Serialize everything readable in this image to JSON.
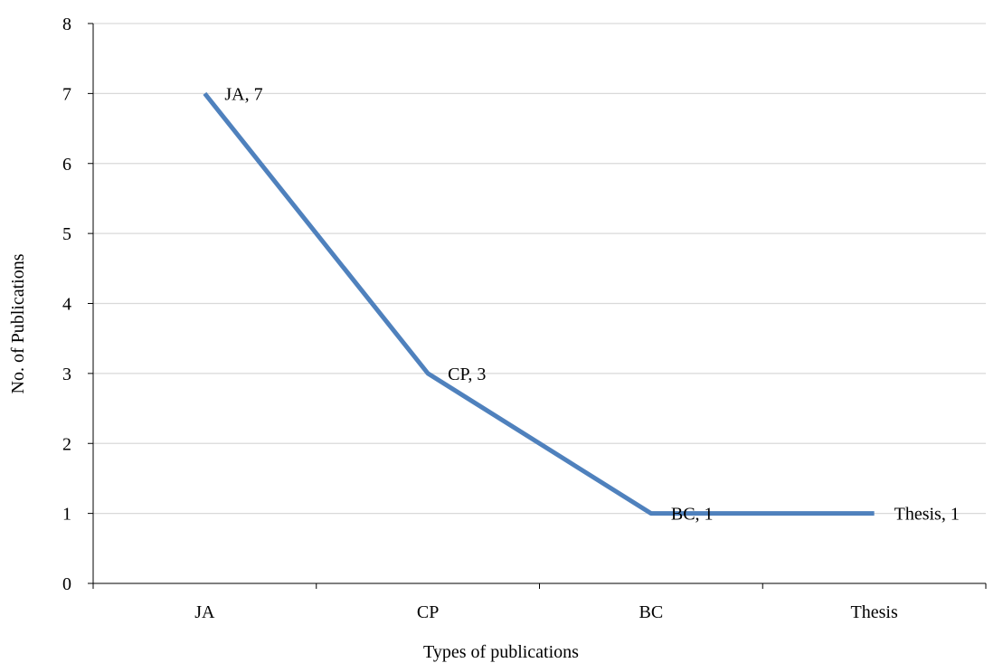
{
  "chart_data": {
    "type": "line",
    "categories": [
      "JA",
      "CP",
      "BC",
      "Thesis"
    ],
    "series": [
      {
        "values": [
          7,
          3,
          1,
          1
        ]
      }
    ],
    "data_labels": [
      "JA, 7",
      "CP, 3",
      "BC, 1",
      "Thesis, 1"
    ],
    "title": "",
    "xlabel": "Types of publications",
    "ylabel": "No. of Publications",
    "ylim": [
      0,
      8
    ],
    "yticks": [
      0,
      1,
      2,
      3,
      4,
      5,
      6,
      7,
      8
    ],
    "grid": true,
    "legend": "none",
    "line_color": "#4f81bd"
  }
}
